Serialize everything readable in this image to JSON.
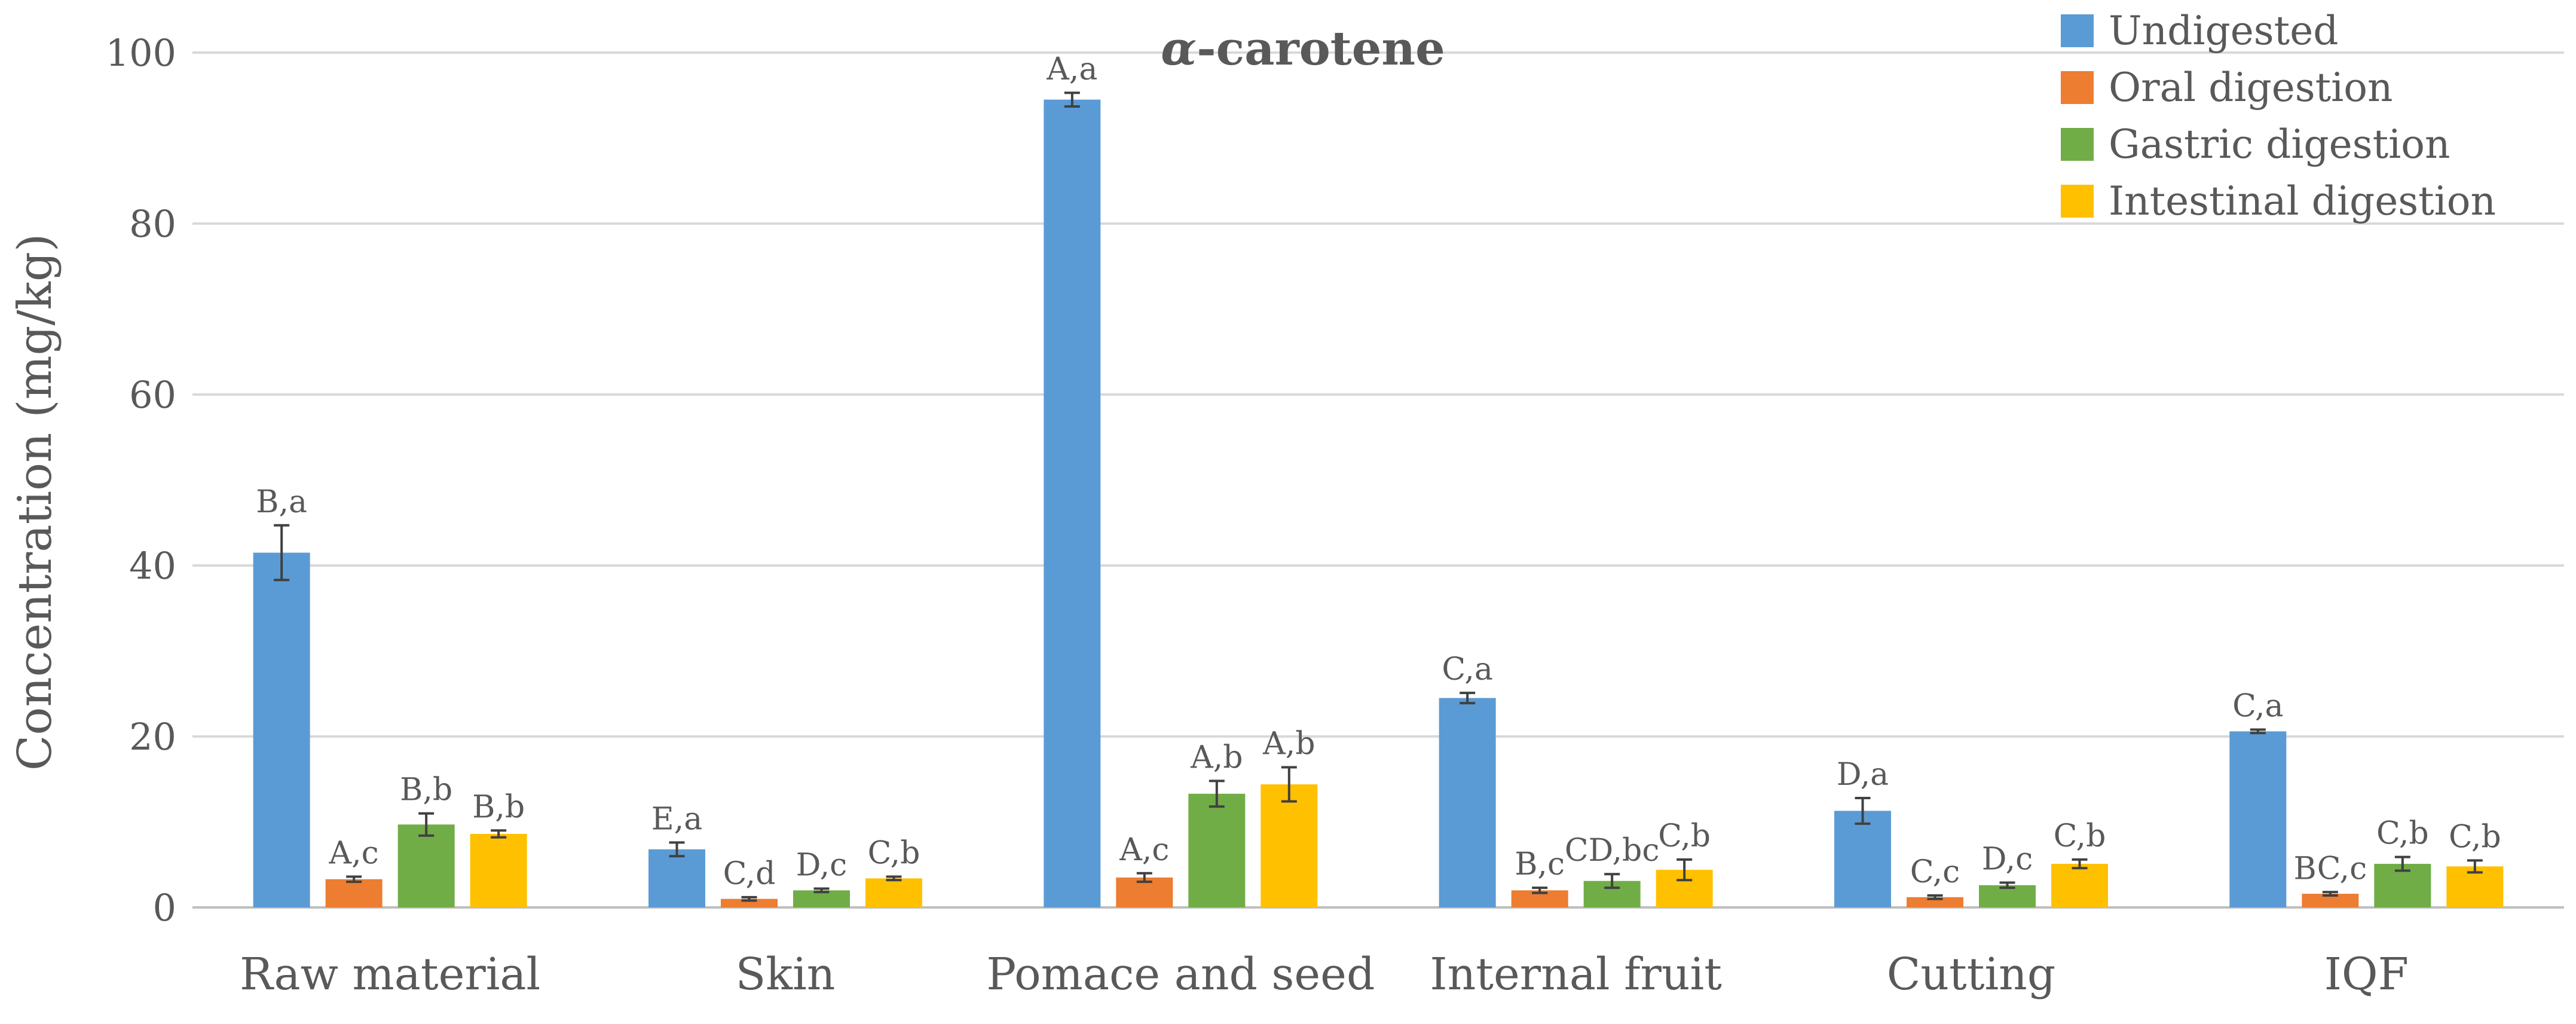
{
  "chart_data": {
    "type": "bar",
    "title": {
      "symbol": "α",
      "text": "-carotene"
    },
    "xlabel": "",
    "ylabel": "Concentration (mg/kg)",
    "ylim": [
      0,
      100
    ],
    "yticks": [
      0,
      20,
      40,
      60,
      80,
      100
    ],
    "grid": true,
    "legend_position": "top-right",
    "categories": [
      "Raw material",
      "Skin",
      "Pomace and seed",
      "Internal fruit",
      "Cutting",
      "IQF"
    ],
    "series": [
      {
        "name": "Undigested",
        "color": "#5B9BD5",
        "values": [
          41.5,
          6.8,
          94.5,
          24.5,
          11.3,
          20.6
        ],
        "errors": [
          3.2,
          0.8,
          0.8,
          0.6,
          1.5,
          0.2
        ],
        "labels": [
          "B,a",
          "E,a",
          "A,a",
          "C,a",
          "D,a",
          "C,a"
        ]
      },
      {
        "name": "Oral digestion",
        "color": "#ED7D31",
        "values": [
          3.3,
          1.0,
          3.5,
          2.0,
          1.2,
          1.6
        ],
        "errors": [
          0.3,
          0.2,
          0.5,
          0.3,
          0.2,
          0.2
        ],
        "labels": [
          "A,c",
          "C,d",
          "A,c",
          "B,c",
          "C,c",
          "BC,c"
        ]
      },
      {
        "name": "Gastric digestion",
        "color": "#70AD47",
        "values": [
          9.7,
          2.0,
          13.3,
          3.1,
          2.6,
          5.1
        ],
        "errors": [
          1.3,
          0.2,
          1.5,
          0.8,
          0.3,
          0.8
        ],
        "labels": [
          "B,b",
          "D,c",
          "A,b",
          "CD,bc",
          "D,c",
          "C,b"
        ]
      },
      {
        "name": "Intestinal digestion",
        "color": "#FFC000",
        "values": [
          8.6,
          3.4,
          14.4,
          4.4,
          5.1,
          4.8
        ],
        "errors": [
          0.4,
          0.2,
          2.0,
          1.2,
          0.5,
          0.7
        ],
        "labels": [
          "B,b",
          "C,b",
          "A,b",
          "C,b",
          "C,b",
          "C,b"
        ]
      }
    ]
  }
}
